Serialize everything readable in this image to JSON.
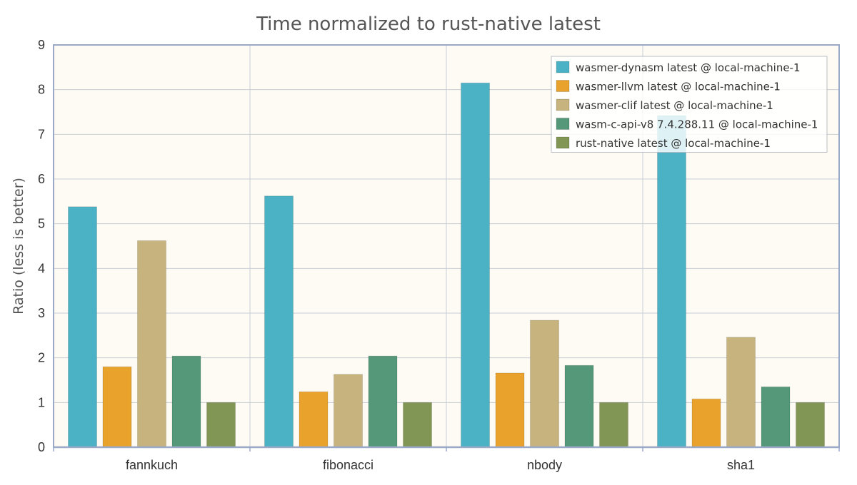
{
  "chart_data": {
    "type": "bar",
    "title": "Time normalized to rust-native latest",
    "xlabel": "",
    "ylabel": "Ratio  (less is better)",
    "ylim": [
      0,
      9
    ],
    "yticks": [
      "0",
      "1",
      "2",
      "3",
      "4",
      "5",
      "6",
      "7",
      "8",
      "9"
    ],
    "categories": [
      "fannkuch",
      "fibonacci",
      "nbody",
      "sha1"
    ],
    "series": [
      {
        "name": "wasmer-dynasm latest @ local-machine-1",
        "color": "#4bb1c5",
        "values": [
          5.38,
          5.62,
          8.15,
          7.42
        ]
      },
      {
        "name": "wasmer-llvm latest @ local-machine-1",
        "color": "#e9a22b",
        "values": [
          1.8,
          1.24,
          1.66,
          1.08
        ]
      },
      {
        "name": "wasmer-clif latest @ local-machine-1",
        "color": "#c6b37e",
        "values": [
          4.62,
          1.63,
          2.84,
          2.46
        ]
      },
      {
        "name": "wasm-c-api-v8 7.4.288.11 @ local-machine-1",
        "color": "#549779",
        "values": [
          2.04,
          2.04,
          1.83,
          1.35
        ]
      },
      {
        "name": "rust-native latest @ local-machine-1",
        "color": "#819655",
        "values": [
          1.0,
          1.0,
          1.0,
          1.0
        ]
      }
    ],
    "grid": true,
    "legend_position": "top-right",
    "plot_background": "#fdfbf3",
    "axis_color": "#9aa9c8",
    "grid_color": "#c9ced7"
  }
}
